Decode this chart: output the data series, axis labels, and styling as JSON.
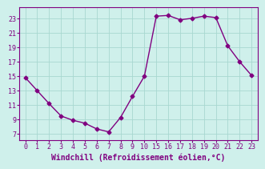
{
  "x_vals": [
    0,
    1,
    2,
    3,
    4,
    5,
    6,
    7,
    8,
    9,
    10,
    15,
    16,
    17,
    18,
    19,
    20,
    21,
    22,
    23
  ],
  "y": [
    14.8,
    13.0,
    11.2,
    9.5,
    8.9,
    8.5,
    7.7,
    7.3,
    9.3,
    12.2,
    15.0,
    23.3,
    23.4,
    22.8,
    23.0,
    23.3,
    23.1,
    19.2,
    17.0,
    15.1
  ],
  "line_color": "#800080",
  "marker": "D",
  "markersize": 2.5,
  "linewidth": 1.0,
  "bg_color": "#cff0eb",
  "grid_color": "#a8d8d0",
  "xlabel": "Windchill (Refroidissement éolien,°C)",
  "xlabel_color": "#800080",
  "yticks": [
    7,
    9,
    11,
    13,
    15,
    17,
    19,
    21,
    23
  ],
  "xtick_labels": [
    "0",
    "1",
    "2",
    "3",
    "4",
    "5",
    "6",
    "7",
    "8",
    "9",
    "10",
    "15",
    "16",
    "17",
    "18",
    "19",
    "20",
    "21",
    "22",
    "23"
  ],
  "ylim": [
    6.2,
    24.5
  ],
  "tick_color": "#800080",
  "tick_fontsize": 6.0,
  "xlabel_fontsize": 7.0
}
